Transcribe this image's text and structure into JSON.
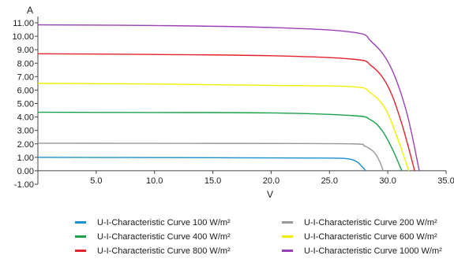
{
  "chart_data": {
    "type": "line",
    "xlabel": "V",
    "ylabel": "A",
    "xlim": [
      0,
      35
    ],
    "ylim": [
      -1,
      11
    ],
    "x_ticks": [
      "5.0",
      "10.0",
      "15.0",
      "20.0",
      "25.0",
      "30.0",
      "35.0"
    ],
    "y_ticks": [
      "-1.00",
      "0.00",
      "1.00",
      "2.00",
      "3.00",
      "4.00",
      "5.00",
      "6.00",
      "7.00",
      "8.00",
      "9.00",
      "10.00",
      "11.00"
    ],
    "grid": false,
    "legend_position": "bottom",
    "series": [
      {
        "name": "U-I-Characteristic Curve 100 W/m²",
        "color": "#1a8fd0",
        "x": [
          0,
          10,
          20,
          25,
          26.5,
          27.3,
          27.8,
          28.1
        ],
        "y": [
          1.0,
          0.98,
          0.96,
          0.94,
          0.9,
          0.7,
          0.3,
          0.0
        ]
      },
      {
        "name": "U-I-Characteristic Curve 200 W/m²",
        "color": "#999999",
        "x": [
          0,
          10,
          20,
          27,
          28,
          28.8,
          29.3,
          29.6
        ],
        "y": [
          2.05,
          2.04,
          2.03,
          2.0,
          1.85,
          1.4,
          0.7,
          0.0
        ]
      },
      {
        "name": "U-I-Characteristic Curve 400 W/m²",
        "color": "#1aa14a",
        "x": [
          0,
          10,
          20,
          27,
          28.5,
          29.5,
          30.4,
          31.2
        ],
        "y": [
          4.35,
          4.33,
          4.3,
          4.1,
          3.8,
          3.0,
          1.6,
          0.0
        ]
      },
      {
        "name": "U-I-Characteristic Curve 600 W/m²",
        "color": "#f2ee00",
        "x": [
          0,
          10,
          20,
          27,
          28.5,
          29.8,
          30.8,
          31.8
        ],
        "y": [
          6.5,
          6.45,
          6.35,
          6.25,
          5.8,
          4.6,
          2.5,
          0.0
        ]
      },
      {
        "name": "U-I-Characteristic Curve 800 W/m²",
        "color": "#e3222b",
        "x": [
          0,
          10,
          20,
          27,
          28.6,
          30.0,
          31.2,
          32.3
        ],
        "y": [
          8.7,
          8.65,
          8.55,
          8.3,
          7.8,
          6.3,
          3.5,
          0.0
        ]
      },
      {
        "name": "U-I-Characteristic Curve 1000 W/m²",
        "color": "#9b3fb5",
        "x": [
          0,
          10,
          20,
          27,
          28.6,
          30.2,
          31.6,
          32.7
        ],
        "y": [
          10.85,
          10.8,
          10.65,
          10.3,
          9.6,
          7.8,
          4.4,
          0.0
        ]
      }
    ]
  }
}
